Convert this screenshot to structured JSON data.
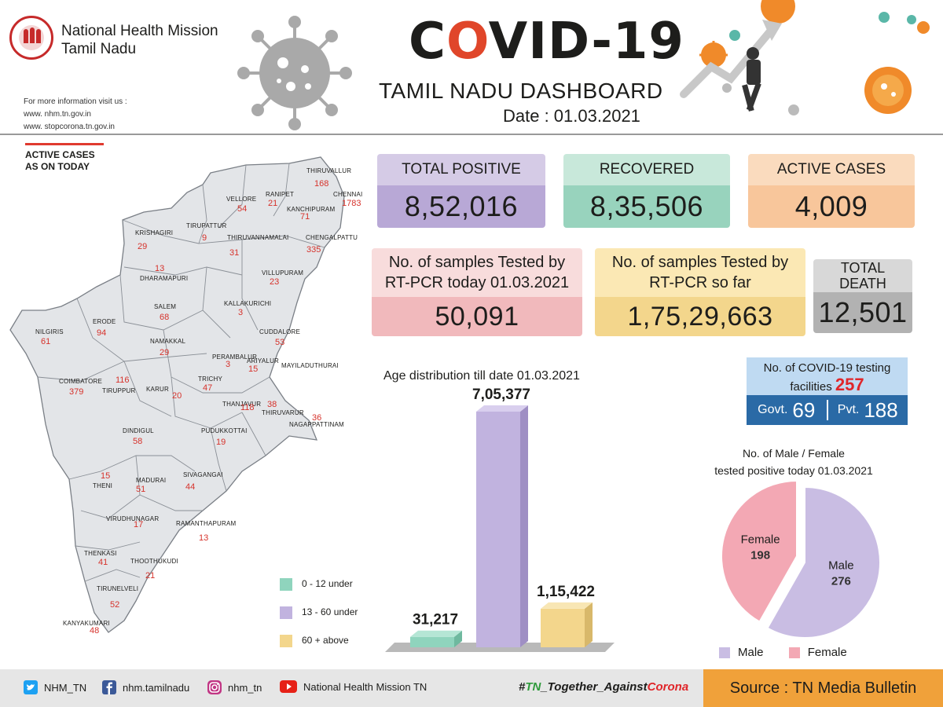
{
  "header": {
    "org_line1": "National Health Mission",
    "org_line2": "Tamil Nadu",
    "logo_text": "NATIONAL HEALTH MISSION · TAMIL NADU",
    "info_label": "For more information visit us :",
    "site1": "www. nhm.tn.gov.in",
    "site2": "www. stopcorona.tn.gov.in",
    "title_pre": "C",
    "title_o": "O",
    "title_post": "VID-19",
    "subtitle": "TAMIL NADU DASHBOARD",
    "date": "Date : 01.03.2021"
  },
  "map": {
    "heading1": "ACTIVE CASES",
    "heading2": "AS ON TODAY",
    "districts": [
      {
        "name": "THIRUVALLUR",
        "value": "168"
      },
      {
        "name": "CHENNAI",
        "value": "1783"
      },
      {
        "name": "RANIPET",
        "value": "21"
      },
      {
        "name": "VELLORE",
        "value": "54"
      },
      {
        "name": "KANCHIPURAM",
        "value": "71"
      },
      {
        "name": "TIRUPATTUR",
        "value": "9"
      },
      {
        "name": "KRISHAGIRI",
        "value": "29"
      },
      {
        "name": "THIRUVANNAMALAI",
        "value": "31"
      },
      {
        "name": "CHENGALPATTU",
        "value": "335"
      },
      {
        "name": "DHARAMAPURI",
        "value": "13"
      },
      {
        "name": "VILLUPURAM",
        "value": "23"
      },
      {
        "name": "SALEM",
        "value": "68"
      },
      {
        "name": "KALLAKURICHI",
        "value": "3"
      },
      {
        "name": "NILGIRIS",
        "value": "61"
      },
      {
        "name": "ERODE",
        "value": "94"
      },
      {
        "name": "NAMAKKAL",
        "value": "29"
      },
      {
        "name": "CUDDALORE",
        "value": "53"
      },
      {
        "name": "PERAMBALUR",
        "value": "3"
      },
      {
        "name": "ARIYALUR",
        "value": "15"
      },
      {
        "name": "MAYILADUTHURAI",
        "value": ""
      },
      {
        "name": "COIMBATORE",
        "value": "379"
      },
      {
        "name": "TIRUPPUR",
        "value": "116"
      },
      {
        "name": "KARUR",
        "value": "20"
      },
      {
        "name": "TRICHY",
        "value": "47"
      },
      {
        "name": "THANJAVUR",
        "value": "118"
      },
      {
        "name": "THIRUVARUR",
        "value": "38"
      },
      {
        "name": "NAGAPPATTINAM",
        "value": "36"
      },
      {
        "name": "DINDIGUL",
        "value": "58"
      },
      {
        "name": "PUDUKKOTTAI",
        "value": "19"
      },
      {
        "name": "THENI",
        "value": "15"
      },
      {
        "name": "MADURAI",
        "value": "51"
      },
      {
        "name": "SIVAGANGAI",
        "value": "44"
      },
      {
        "name": "VIRUDHUNAGAR",
        "value": "17"
      },
      {
        "name": "RAMANTHAPURAM",
        "value": "13"
      },
      {
        "name": "THENKASI",
        "value": "41"
      },
      {
        "name": "THOOTHUKUDI",
        "value": "21"
      },
      {
        "name": "TIRUNELVELI",
        "value": "52"
      },
      {
        "name": "KANYAKUMARI",
        "value": "48"
      }
    ]
  },
  "stats": {
    "total_positive": {
      "label": "TOTAL POSITIVE",
      "value": "8,52,016"
    },
    "recovered": {
      "label": "RECOVERED",
      "value": "8,35,506"
    },
    "active": {
      "label": "ACTIVE CASES",
      "value": "4,009"
    },
    "tested_today": {
      "label1": "No. of samples Tested by",
      "label2": "RT-PCR today 01.03.2021",
      "value": "50,091"
    },
    "tested_so_far": {
      "label1": "No. of samples Tested by",
      "label2": "RT-PCR so far",
      "value": "1,75,29,663"
    },
    "death": {
      "label1": "TOTAL",
      "label2": "DEATH",
      "value": "12,501"
    }
  },
  "facilities": {
    "label1": "No. of COVID-19 testing",
    "label2": "facilities",
    "total": "257",
    "govt_label": "Govt.",
    "govt_value": "69",
    "pvt_label": "Pvt.",
    "pvt_value": "188"
  },
  "chart_data": [
    {
      "type": "bar",
      "title": "Age distribution till date 01.03.2021",
      "categories": [
        "0 - 12 under",
        "13 - 60 under",
        "60 + above"
      ],
      "values": [
        31217,
        705377,
        115422
      ],
      "data_labels": [
        "31,217",
        "7,05,377",
        "1,15,422"
      ],
      "colors": [
        "#8fd4bd",
        "#c1b3df",
        "#f3d68c"
      ],
      "ylim": [
        0,
        705377
      ],
      "xlabel": "",
      "ylabel": ""
    },
    {
      "type": "pie",
      "title": "No. of Male  / Female tested positive today 01.03.2021",
      "title_line1": "No. of Male  / Female",
      "title_line2": "tested positive today 01.03.2021",
      "labels": [
        "Male",
        "Female"
      ],
      "values": [
        276,
        198
      ],
      "colors": [
        "#c9bde3",
        "#f3a8b4"
      ],
      "legend": [
        "Male",
        "Female"
      ]
    }
  ],
  "footer": {
    "twitter": "NHM_TN",
    "facebook": "nhm.tamilnadu",
    "instagram": "nhm_tn",
    "youtube": "National Health Mission TN",
    "hashtag_a": "#",
    "hashtag_b": "TN",
    "hashtag_c": "_Together_Against",
    "hashtag_d": "Corona",
    "source": "Source : TN Media Bulletin"
  }
}
